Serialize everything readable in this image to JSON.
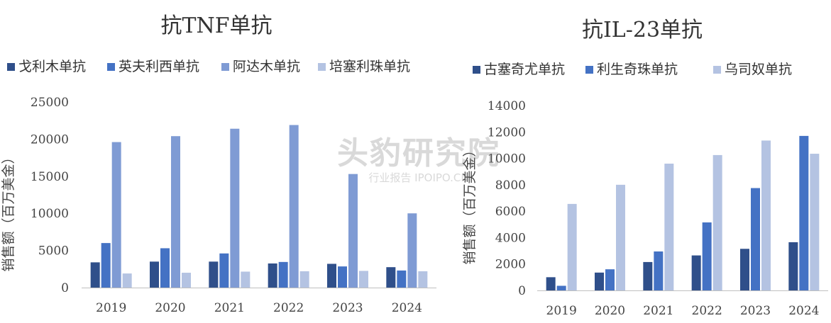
{
  "colors": {
    "dark_blue": "#2f4f8a",
    "mid_blue": "#4472c4",
    "light_blue": "#7f9bd4",
    "pale_blue": "#b4c3e2",
    "axis": "#bfbfbf",
    "text": "#333333"
  },
  "watermark": {
    "main": "头豹研究院",
    "sub": "行业报告 IPOIPO.CN"
  },
  "chart_data": [
    {
      "type": "bar",
      "title": "抗TNF单抗",
      "ylabel": "销售额（百万美金）",
      "xlabel": "",
      "categories": [
        "2019",
        "2020",
        "2021",
        "2022",
        "2023",
        "2024"
      ],
      "ylim": [
        0,
        25000
      ],
      "yticks": [
        "0",
        "5000",
        "10000",
        "15000",
        "20000",
        "25000"
      ],
      "legend_position": "top",
      "series": [
        {
          "name": "戈利木单抗",
          "color": "#2f4f8a",
          "values": [
            3400,
            3500,
            3500,
            3250,
            3200,
            2750
          ]
        },
        {
          "name": "英夫利西单抗",
          "color": "#4472c4",
          "values": [
            6000,
            5300,
            4600,
            3450,
            2850,
            2300
          ]
        },
        {
          "name": "阿达木单抗",
          "color": "#7f9bd4",
          "values": [
            19600,
            20400,
            21400,
            21900,
            15300,
            10000
          ]
        },
        {
          "name": "培塞利珠单抗",
          "color": "#b4c3e2",
          "values": [
            1900,
            2000,
            2150,
            2200,
            2250,
            2200
          ]
        }
      ]
    },
    {
      "type": "bar",
      "title": "抗IL-23单抗",
      "ylabel": "销售额（百万美金）",
      "xlabel": "",
      "categories": [
        "2019",
        "2020",
        "2021",
        "2022",
        "2023",
        "2024"
      ],
      "ylim": [
        0,
        14000
      ],
      "yticks": [
        "0",
        "2000",
        "4000",
        "6000",
        "8000",
        "10000",
        "12000",
        "14000"
      ],
      "legend_position": "top",
      "series": [
        {
          "name": "古塞奇尤单抗",
          "color": "#2f4f8a",
          "values": [
            1000,
            1350,
            2150,
            2650,
            3150,
            3650
          ]
        },
        {
          "name": "利生奇珠单抗",
          "color": "#4472c4",
          "values": [
            350,
            1600,
            2950,
            5150,
            7750,
            11700
          ]
        },
        {
          "name": "乌司奴单抗",
          "color": "#b4c3e2",
          "values": [
            6550,
            8000,
            9600,
            10250,
            11350,
            10350
          ]
        }
      ]
    }
  ]
}
